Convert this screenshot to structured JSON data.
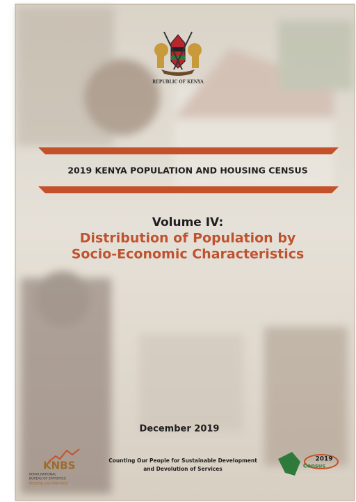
{
  "header": {
    "emblem_caption": "REPUBLIC OF KENYA"
  },
  "census_title": "2019 KENYA POPULATION AND HOUSING CENSUS",
  "volume": "Volume IV:",
  "subtitle_lines": [
    "Distribution of Population by",
    "Socio-Economic Characteristics"
  ],
  "date": "December 2019",
  "footer": {
    "knbs": {
      "name": "KNBS",
      "full_name_lines": [
        "KENYA NATIONAL",
        "BUREAU OF STATISTICS"
      ],
      "tagline": "Keeping you informed"
    },
    "slogan_lines": [
      "Counting Our People for Sustainable Development",
      "and Devolution of Services"
    ],
    "census_logo": {
      "year": "2019",
      "word": "Census"
    }
  }
}
